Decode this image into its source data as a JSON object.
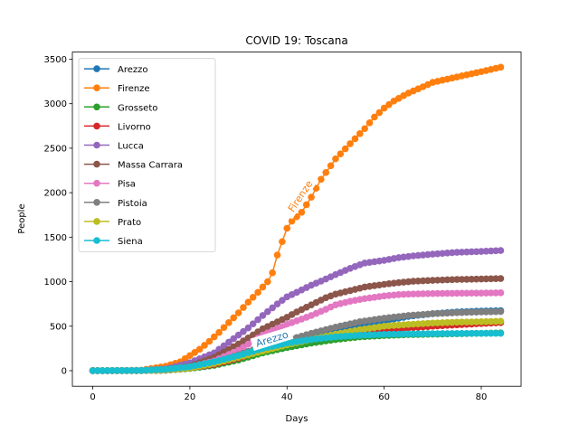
{
  "chart_data": {
    "type": "line",
    "title": "COVID 19: Toscana",
    "xlabel": "Days",
    "ylabel": "People",
    "xlim": [
      -4.2,
      88.2
    ],
    "ylim": [
      -175,
      3580
    ],
    "xticks": [
      0,
      20,
      40,
      60,
      80
    ],
    "yticks": [
      0,
      500,
      1000,
      1500,
      2000,
      2500,
      3000,
      3500
    ],
    "legend_position": "top-left",
    "n_days": 85,
    "series": [
      {
        "name": "Arezzo",
        "color": "#1f77b4",
        "points": [
          [
            0,
            0
          ],
          [
            10,
            2
          ],
          [
            15,
            8
          ],
          [
            20,
            35
          ],
          [
            25,
            80
          ],
          [
            30,
            140
          ],
          [
            35,
            220
          ],
          [
            40,
            300
          ],
          [
            45,
            370
          ],
          [
            50,
            430
          ],
          [
            55,
            500
          ],
          [
            60,
            560
          ],
          [
            65,
            610
          ],
          [
            70,
            640
          ],
          [
            75,
            660
          ],
          [
            80,
            670
          ],
          [
            84,
            675
          ]
        ]
      },
      {
        "name": "Firenze",
        "color": "#ff7f0e",
        "points": [
          [
            0,
            0
          ],
          [
            10,
            5
          ],
          [
            15,
            50
          ],
          [
            18,
            100
          ],
          [
            20,
            170
          ],
          [
            22,
            240
          ],
          [
            24,
            330
          ],
          [
            26,
            430
          ],
          [
            28,
            540
          ],
          [
            30,
            650
          ],
          [
            32,
            770
          ],
          [
            34,
            880
          ],
          [
            36,
            1000
          ],
          [
            37,
            1100
          ],
          [
            38,
            1300
          ],
          [
            39,
            1450
          ],
          [
            40,
            1600
          ],
          [
            41,
            1680
          ],
          [
            43,
            1780
          ],
          [
            45,
            1950
          ],
          [
            47,
            2150
          ],
          [
            50,
            2380
          ],
          [
            53,
            2550
          ],
          [
            56,
            2720
          ],
          [
            58,
            2850
          ],
          [
            60,
            2950
          ],
          [
            62,
            3030
          ],
          [
            65,
            3120
          ],
          [
            68,
            3190
          ],
          [
            70,
            3240
          ],
          [
            75,
            3300
          ],
          [
            80,
            3360
          ],
          [
            84,
            3410
          ]
        ]
      },
      {
        "name": "Grosseto",
        "color": "#2ca02c",
        "points": [
          [
            0,
            0
          ],
          [
            10,
            1
          ],
          [
            15,
            5
          ],
          [
            20,
            25
          ],
          [
            25,
            60
          ],
          [
            30,
            120
          ],
          [
            35,
            200
          ],
          [
            40,
            260
          ],
          [
            45,
            310
          ],
          [
            50,
            350
          ],
          [
            55,
            380
          ],
          [
            60,
            395
          ],
          [
            65,
            405
          ],
          [
            70,
            410
          ],
          [
            75,
            415
          ],
          [
            80,
            420
          ],
          [
            84,
            425
          ]
        ]
      },
      {
        "name": "Livorno",
        "color": "#d62728",
        "points": [
          [
            0,
            0
          ],
          [
            10,
            1
          ],
          [
            15,
            5
          ],
          [
            20,
            30
          ],
          [
            25,
            70
          ],
          [
            30,
            140
          ],
          [
            35,
            230
          ],
          [
            40,
            300
          ],
          [
            45,
            350
          ],
          [
            50,
            390
          ],
          [
            55,
            420
          ],
          [
            60,
            450
          ],
          [
            65,
            480
          ],
          [
            70,
            500
          ],
          [
            75,
            515
          ],
          [
            80,
            530
          ],
          [
            84,
            540
          ]
        ]
      },
      {
        "name": "Lucca",
        "color": "#9467bd",
        "points": [
          [
            0,
            0
          ],
          [
            10,
            3
          ],
          [
            15,
            20
          ],
          [
            20,
            90
          ],
          [
            25,
            200
          ],
          [
            30,
            400
          ],
          [
            32,
            480
          ],
          [
            35,
            620
          ],
          [
            38,
            750
          ],
          [
            40,
            830
          ],
          [
            42,
            880
          ],
          [
            45,
            960
          ],
          [
            48,
            1030
          ],
          [
            50,
            1080
          ],
          [
            53,
            1150
          ],
          [
            56,
            1210
          ],
          [
            60,
            1240
          ],
          [
            63,
            1270
          ],
          [
            66,
            1290
          ],
          [
            70,
            1310
          ],
          [
            75,
            1330
          ],
          [
            80,
            1340
          ],
          [
            84,
            1350
          ]
        ]
      },
      {
        "name": "Massa Carrara",
        "color": "#8c564b",
        "points": [
          [
            0,
            0
          ],
          [
            10,
            2
          ],
          [
            15,
            10
          ],
          [
            20,
            50
          ],
          [
            25,
            150
          ],
          [
            30,
            300
          ],
          [
            35,
            470
          ],
          [
            40,
            600
          ],
          [
            42,
            660
          ],
          [
            45,
            740
          ],
          [
            48,
            820
          ],
          [
            50,
            860
          ],
          [
            53,
            900
          ],
          [
            56,
            940
          ],
          [
            60,
            970
          ],
          [
            63,
            990
          ],
          [
            66,
            1005
          ],
          [
            70,
            1015
          ],
          [
            75,
            1025
          ],
          [
            80,
            1030
          ],
          [
            84,
            1035
          ]
        ]
      },
      {
        "name": "Pisa",
        "color": "#e377c2",
        "points": [
          [
            0,
            0
          ],
          [
            10,
            2
          ],
          [
            15,
            10
          ],
          [
            20,
            40
          ],
          [
            25,
            110
          ],
          [
            30,
            230
          ],
          [
            35,
            400
          ],
          [
            40,
            520
          ],
          [
            45,
            620
          ],
          [
            48,
            690
          ],
          [
            50,
            740
          ],
          [
            53,
            780
          ],
          [
            56,
            810
          ],
          [
            60,
            840
          ],
          [
            63,
            855
          ],
          [
            66,
            862
          ],
          [
            70,
            867
          ],
          [
            75,
            870
          ],
          [
            80,
            872
          ],
          [
            84,
            875
          ]
        ]
      },
      {
        "name": "Pistoia",
        "color": "#7f7f7f",
        "points": [
          [
            0,
            0
          ],
          [
            10,
            2
          ],
          [
            15,
            8
          ],
          [
            20,
            30
          ],
          [
            25,
            90
          ],
          [
            30,
            180
          ],
          [
            35,
            270
          ],
          [
            40,
            340
          ],
          [
            45,
            420
          ],
          [
            50,
            490
          ],
          [
            55,
            550
          ],
          [
            60,
            590
          ],
          [
            65,
            620
          ],
          [
            70,
            640
          ],
          [
            75,
            652
          ],
          [
            80,
            660
          ],
          [
            84,
            665
          ]
        ]
      },
      {
        "name": "Prato",
        "color": "#bcbd22",
        "points": [
          [
            0,
            0
          ],
          [
            10,
            2
          ],
          [
            15,
            8
          ],
          [
            20,
            30
          ],
          [
            25,
            80
          ],
          [
            30,
            150
          ],
          [
            35,
            220
          ],
          [
            40,
            290
          ],
          [
            45,
            350
          ],
          [
            50,
            410
          ],
          [
            55,
            460
          ],
          [
            60,
            500
          ],
          [
            65,
            520
          ],
          [
            70,
            535
          ],
          [
            75,
            545
          ],
          [
            80,
            550
          ],
          [
            84,
            555
          ]
        ]
      },
      {
        "name": "Siena",
        "color": "#17becf",
        "points": [
          [
            0,
            0
          ],
          [
            10,
            3
          ],
          [
            15,
            15
          ],
          [
            20,
            45
          ],
          [
            25,
            100
          ],
          [
            30,
            170
          ],
          [
            35,
            250
          ],
          [
            40,
            310
          ],
          [
            45,
            350
          ],
          [
            50,
            380
          ],
          [
            55,
            398
          ],
          [
            60,
            408
          ],
          [
            65,
            413
          ],
          [
            70,
            416
          ],
          [
            75,
            418
          ],
          [
            80,
            420
          ],
          [
            84,
            420
          ]
        ]
      }
    ],
    "annotations": [
      {
        "text": "Firenze",
        "series": "Firenze",
        "x": 43,
        "y": 1950,
        "rotation": -56,
        "color": "#ff7f0e"
      },
      {
        "text": "Arezzo",
        "series": "Arezzo",
        "x": 37,
        "y": 340,
        "rotation": -17,
        "color": "#1f77b4"
      }
    ]
  }
}
